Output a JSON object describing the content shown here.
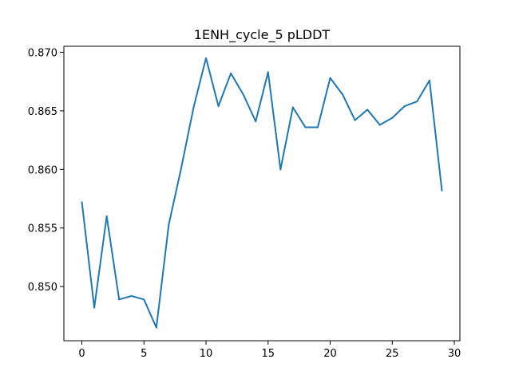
{
  "chart_data": {
    "type": "line",
    "title": "1ENH_cycle_5 pLDDT",
    "xlabel": "",
    "ylabel": "",
    "x": [
      0,
      1,
      2,
      3,
      4,
      5,
      6,
      7,
      8,
      9,
      10,
      11,
      12,
      13,
      14,
      15,
      16,
      17,
      18,
      19,
      20,
      21,
      22,
      23,
      24,
      25,
      26,
      27,
      28,
      29
    ],
    "series": [
      {
        "color": "#1f77b4",
        "values": [
          0.8572,
          0.8482,
          0.856,
          0.8489,
          0.8492,
          0.8489,
          0.8465,
          0.8553,
          0.8601,
          0.8653,
          0.8695,
          0.8654,
          0.8682,
          0.8664,
          0.8641,
          0.8683,
          0.86,
          0.8653,
          0.8636,
          0.8636,
          0.8678,
          0.8664,
          0.8642,
          0.8651,
          0.8638,
          0.8644,
          0.8654,
          0.8658,
          0.8676,
          0.8582
        ]
      }
    ],
    "xlim": [
      -1.45,
      30.45
    ],
    "ylim": [
      0.84538,
      0.87051
    ],
    "xticks": [
      0,
      5,
      10,
      15,
      20,
      25,
      30
    ],
    "xtick_labels": [
      "0",
      "5",
      "10",
      "15",
      "20",
      "25",
      "30"
    ],
    "yticks": [
      0.85,
      0.855,
      0.86,
      0.865,
      0.87
    ],
    "ytick_labels": [
      "0.850",
      "0.855",
      "0.860",
      "0.865",
      "0.870"
    ],
    "grid": false,
    "legend": "none"
  }
}
